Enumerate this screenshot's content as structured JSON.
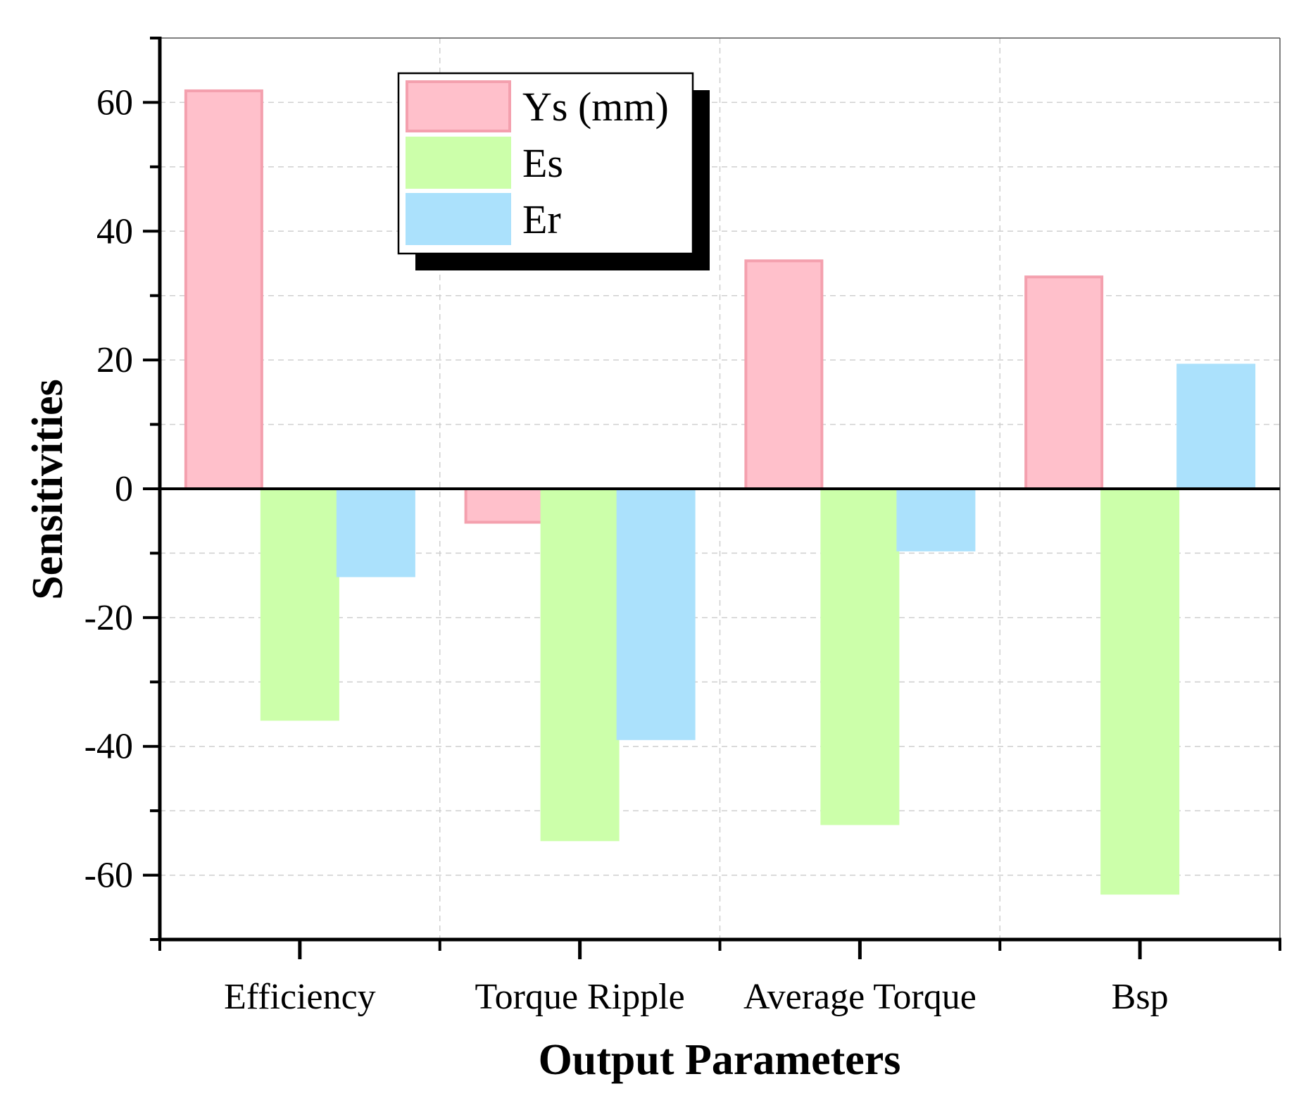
{
  "chart_data": {
    "type": "bar",
    "title": "",
    "xlabel": "Output Parameters",
    "ylabel": "Sensitivities",
    "categories": [
      "Efficiency",
      "Torque Ripple",
      "Average Torque",
      "Bsp"
    ],
    "series": [
      {
        "name": "Ys (mm)",
        "color": "#FFC0CB",
        "edge": "#F4A0AE",
        "values": [
          61.8,
          -5.2,
          35.4,
          32.9
        ]
      },
      {
        "name": "Es",
        "color": "#CCFFAA",
        "edge": "#CCFFAA",
        "values": [
          -35.8,
          -54.5,
          -52.0,
          -62.8
        ]
      },
      {
        "name": "Er",
        "color": "#ABE1FC",
        "edge": "#ABE1FC",
        "values": [
          -13.5,
          -38.8,
          -9.5,
          19.2
        ]
      }
    ],
    "ylim": [
      -70,
      70
    ],
    "yticks": [
      -60,
      -40,
      -20,
      0,
      20,
      40,
      60
    ],
    "yticks_minor": [
      -70,
      -50,
      -30,
      -10,
      10,
      30,
      50,
      70
    ],
    "ytick_labels": [
      "-60",
      "-40",
      "-20",
      "0",
      "20",
      "40",
      "60"
    ],
    "grid": true,
    "legend_position": "top-center"
  }
}
